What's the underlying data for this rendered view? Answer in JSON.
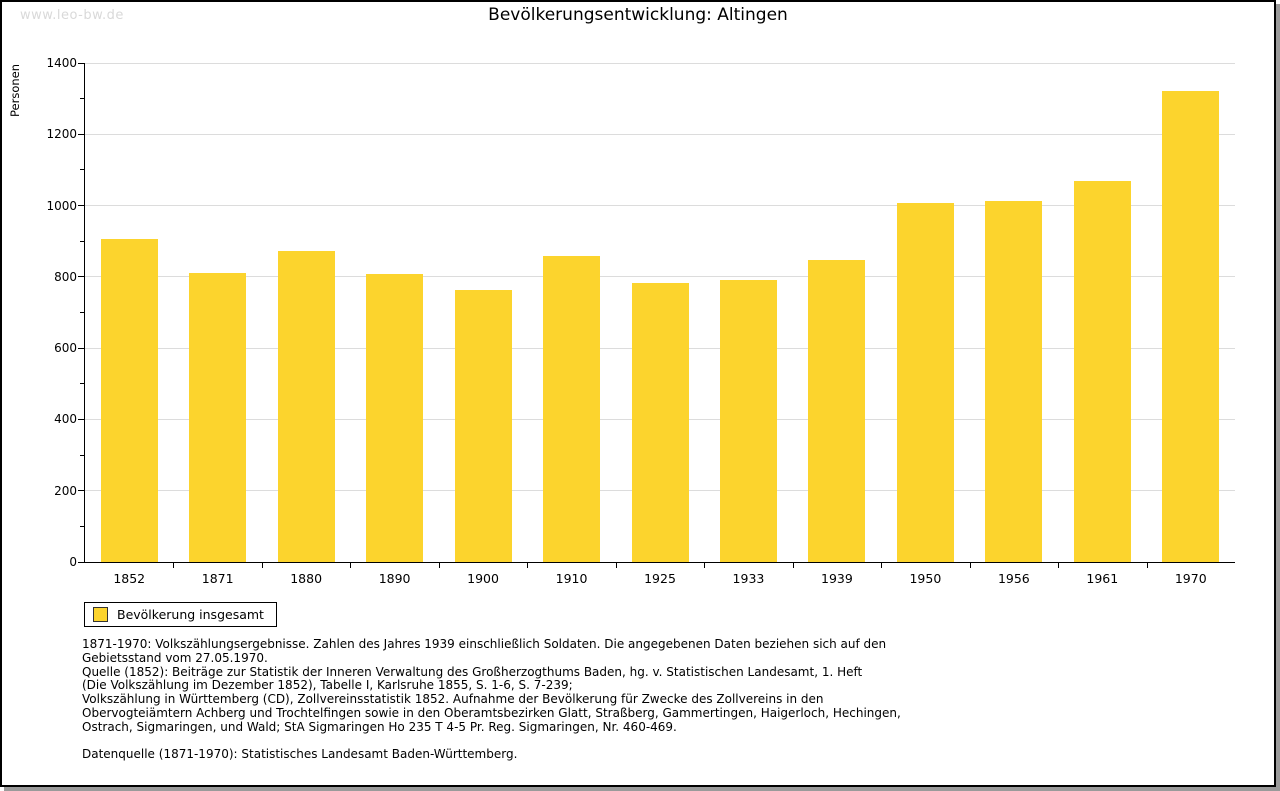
{
  "watermark": "www.leo-bw.de",
  "chart_data": {
    "type": "bar",
    "title": "Bevölkerungsentwicklung: Altingen",
    "ylabel": "Personen",
    "xlabel": "",
    "categories": [
      "1852",
      "1871",
      "1880",
      "1890",
      "1900",
      "1910",
      "1925",
      "1933",
      "1939",
      "1950",
      "1956",
      "1961",
      "1970"
    ],
    "values": [
      907,
      812,
      873,
      809,
      764,
      858,
      784,
      792,
      848,
      1007,
      1014,
      1069,
      1322
    ],
    "ylim": [
      0,
      1400
    ],
    "ytick_step": 200,
    "y_minor_step": 100,
    "grid": true,
    "legend_position": "bottom-left",
    "bar_color": "#FCD42D",
    "gridline_color": "#dcdcdc",
    "legend": {
      "label": "Bevölkerung insgesamt"
    }
  },
  "footnotes": {
    "lines": [
      "1871-1970: Volkszählungsergebnisse. Zahlen des Jahres 1939 einschließlich Soldaten. Die angegebenen Daten beziehen sich auf den",
      "Gebietsstand vom 27.05.1970.",
      "Quelle (1852): Beiträge zur Statistik der Inneren Verwaltung des Großherzogthums Baden, hg. v. Statistischen Landesamt, 1. Heft",
      "(Die Volkszählung im Dezember 1852), Tabelle I, Karlsruhe 1855, S. 1-6, S. 7-239;",
      "Volkszählung in Württemberg (CD), Zollvereinsstatistik 1852. Aufnahme der Bevölkerung für Zwecke des Zollvereins in den",
      "Obervogteiämtern Achberg und Trochtelfingen sowie in den Oberamtsbezirken Glatt, Straßberg, Gammertingen, Haigerloch, Hechingen,",
      "Ostrach, Sigmaringen, und Wald; StA Sigmaringen Ho 235 T 4-5 Pr. Reg. Sigmaringen, Nr. 460-469.",
      "",
      "Datenquelle (1871-1970): Statistisches Landesamt Baden-Württemberg."
    ]
  }
}
